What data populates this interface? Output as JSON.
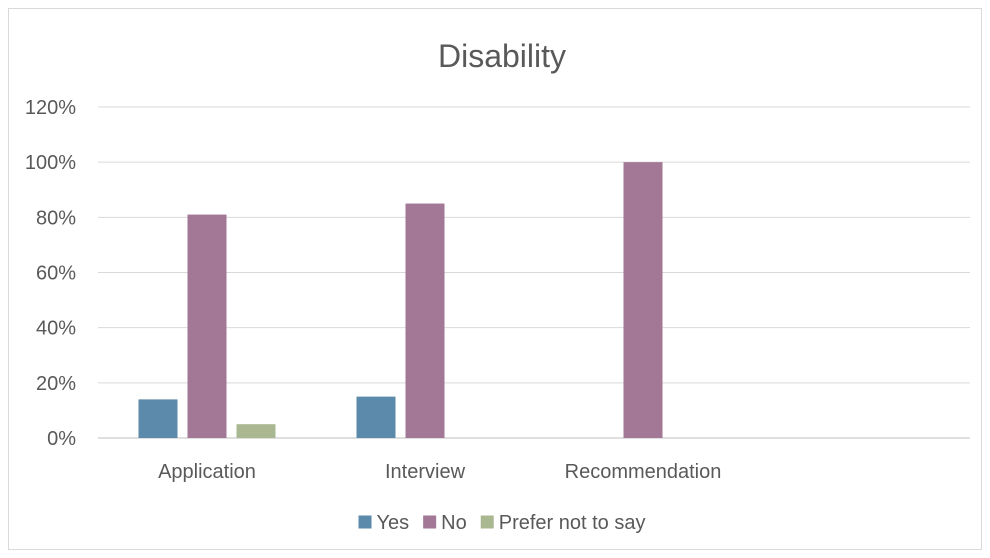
{
  "chart_data": {
    "type": "bar",
    "title": "Disability",
    "xlabel": "",
    "ylabel": "",
    "categories": [
      "Application",
      "Interview",
      "Recommendation"
    ],
    "series": [
      {
        "name": "Yes",
        "values": [
          14,
          15,
          0
        ],
        "color": "#5b8aab"
      },
      {
        "name": "No",
        "values": [
          81,
          85,
          100
        ],
        "color": "#a37796"
      },
      {
        "name": "Prefer not to say",
        "values": [
          5,
          0,
          0
        ],
        "color": "#a9b890"
      }
    ],
    "ylim": [
      0,
      120
    ],
    "yticks": [
      0,
      20,
      40,
      60,
      80,
      100,
      120
    ],
    "ytick_labels": [
      "0%",
      "20%",
      "40%",
      "60%",
      "80%",
      "100%",
      "120%"
    ],
    "grid": true,
    "legend_position": "bottom"
  }
}
